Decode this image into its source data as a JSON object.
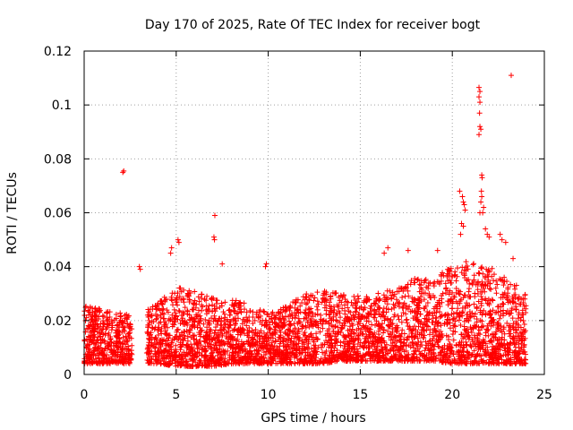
{
  "chart_data": {
    "type": "scatter",
    "title": "Day 170 of 2025, Rate Of TEC Index for receiver bogt",
    "xlabel": "GPS time / hours",
    "ylabel": "ROTI / TECUs",
    "xlim": [
      0,
      25
    ],
    "ylim": [
      0,
      0.12
    ],
    "xticks": [
      0,
      5,
      10,
      15,
      20,
      25
    ],
    "xtick_labels": [
      "0",
      "5",
      "10",
      "15",
      "20",
      "25"
    ],
    "yticks": [
      0,
      0.02,
      0.04,
      0.06,
      0.08,
      0.1,
      0.12
    ],
    "ytick_labels": [
      "0",
      "0.02",
      "0.04",
      "0.06",
      "0.08",
      "0.1",
      "0.12"
    ],
    "grid": true,
    "marker": "plus",
    "color": "#ff0000",
    "dense_data_coverage": {
      "description": "Dense cloud of points from ~0h to ~24h with typical ROTI 0.003-0.03 TECUs; gap around 2.5-3.5h",
      "time_range": [
        0.0,
        24.0
      ],
      "gaps": [
        [
          2.6,
          3.4
        ]
      ],
      "envelope_hours": [
        0,
        1,
        2,
        3,
        4,
        5,
        6,
        7,
        8,
        9,
        10,
        11,
        12,
        13,
        14,
        15,
        16,
        17,
        18,
        19,
        20,
        21,
        22,
        23,
        24
      ],
      "envelope_upper": [
        0.026,
        0.024,
        0.023,
        0.022,
        0.027,
        0.033,
        0.031,
        0.029,
        0.028,
        0.026,
        0.023,
        0.026,
        0.03,
        0.031,
        0.03,
        0.029,
        0.031,
        0.032,
        0.036,
        0.037,
        0.04,
        0.043,
        0.04,
        0.036,
        0.03
      ],
      "envelope_lower": [
        0.004,
        0.004,
        0.004,
        0.004,
        0.004,
        0.003,
        0.003,
        0.003,
        0.004,
        0.004,
        0.004,
        0.004,
        0.004,
        0.004,
        0.005,
        0.005,
        0.005,
        0.005,
        0.005,
        0.005,
        0.004,
        0.004,
        0.004,
        0.004,
        0.004
      ]
    },
    "notable_points": [
      {
        "x": 2.1,
        "y": 0.075
      },
      {
        "x": 2.15,
        "y": 0.0755
      },
      {
        "x": 3.0,
        "y": 0.04
      },
      {
        "x": 3.05,
        "y": 0.039
      },
      {
        "x": 4.7,
        "y": 0.045
      },
      {
        "x": 4.75,
        "y": 0.047
      },
      {
        "x": 5.1,
        "y": 0.05
      },
      {
        "x": 5.15,
        "y": 0.049
      },
      {
        "x": 7.1,
        "y": 0.059
      },
      {
        "x": 7.05,
        "y": 0.051
      },
      {
        "x": 7.08,
        "y": 0.05
      },
      {
        "x": 7.5,
        "y": 0.041
      },
      {
        "x": 9.9,
        "y": 0.041
      },
      {
        "x": 9.85,
        "y": 0.04
      },
      {
        "x": 16.5,
        "y": 0.047
      },
      {
        "x": 16.3,
        "y": 0.045
      },
      {
        "x": 17.6,
        "y": 0.046
      },
      {
        "x": 19.2,
        "y": 0.046
      },
      {
        "x": 20.4,
        "y": 0.068
      },
      {
        "x": 20.55,
        "y": 0.066
      },
      {
        "x": 20.6,
        "y": 0.064
      },
      {
        "x": 20.65,
        "y": 0.063
      },
      {
        "x": 20.7,
        "y": 0.061
      },
      {
        "x": 20.5,
        "y": 0.056
      },
      {
        "x": 20.45,
        "y": 0.052
      },
      {
        "x": 20.6,
        "y": 0.055
      },
      {
        "x": 21.45,
        "y": 0.1065
      },
      {
        "x": 21.5,
        "y": 0.105
      },
      {
        "x": 21.45,
        "y": 0.103
      },
      {
        "x": 21.5,
        "y": 0.101
      },
      {
        "x": 21.48,
        "y": 0.097
      },
      {
        "x": 21.5,
        "y": 0.092
      },
      {
        "x": 21.55,
        "y": 0.091
      },
      {
        "x": 21.45,
        "y": 0.089
      },
      {
        "x": 21.6,
        "y": 0.074
      },
      {
        "x": 21.62,
        "y": 0.073
      },
      {
        "x": 21.58,
        "y": 0.068
      },
      {
        "x": 21.6,
        "y": 0.066
      },
      {
        "x": 21.55,
        "y": 0.064
      },
      {
        "x": 21.5,
        "y": 0.06
      },
      {
        "x": 21.65,
        "y": 0.06
      },
      {
        "x": 21.7,
        "y": 0.062
      },
      {
        "x": 21.8,
        "y": 0.054
      },
      {
        "x": 21.9,
        "y": 0.052
      },
      {
        "x": 22.0,
        "y": 0.051
      },
      {
        "x": 22.6,
        "y": 0.052
      },
      {
        "x": 22.7,
        "y": 0.05
      },
      {
        "x": 22.9,
        "y": 0.049
      },
      {
        "x": 23.2,
        "y": 0.111
      },
      {
        "x": 23.3,
        "y": 0.043
      }
    ]
  }
}
